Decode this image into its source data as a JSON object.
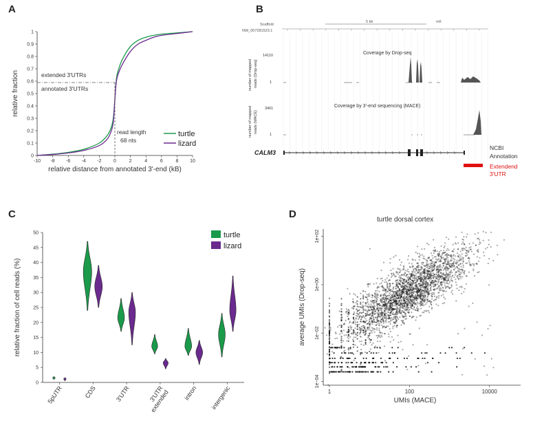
{
  "panels": {
    "A": "A",
    "B": "B",
    "C": "C",
    "D": "D"
  },
  "colors": {
    "turtle": "#1a9a4a",
    "lizard": "#6a2a8e",
    "extended": "#e01010",
    "track": "#555555"
  },
  "panelA": {
    "ext_label": "extended 3'UTRs",
    "ann_label": "annotated 3'UTRs",
    "read_len_1": "read length",
    "read_len_2": "68 nts",
    "legend": [
      "turtle",
      "lizard"
    ]
  },
  "panelB": {
    "scaffold_label": "Scaffold",
    "scaffold_id": "NW_007281523.1",
    "scale_text": "5 kb",
    "build": "m6",
    "track1_title": "Coverage by Drop-seq",
    "track1_max": "14110",
    "track1_min": "1",
    "track1_ylab1": "number of mapped",
    "track1_ylab2": "reads (Drop-seq)",
    "track2_title": "Coverage by 3'-end sequencing (MACE)",
    "track2_max": "3461",
    "track2_min": "1",
    "track2_ylab1": "number of mapped",
    "track2_ylab2": "reads (MACE)",
    "gene": "CALM3",
    "ncbi_1": "NCBI",
    "ncbi_2": "Annotation",
    "ext_1": "Extendend",
    "ext_2": "3'UTR"
  },
  "panelD": {
    "title": "turtle dorsal cortex"
  },
  "chart_data": [
    {
      "type": "line",
      "panel": "A",
      "title": "",
      "xlabel": "relative distance from annotated 3'-end (kB)",
      "ylabel": "relative fraction",
      "xlim": [
        -10,
        10
      ],
      "ylim": [
        0,
        1
      ],
      "xticks": [
        -10,
        -8,
        -6,
        -4,
        -2,
        0,
        2,
        4,
        6,
        8,
        10
      ],
      "yticks": [
        0,
        0.1,
        0.2,
        0.3,
        0.4,
        0.5,
        0.6,
        0.7,
        0.8,
        0.9,
        1
      ],
      "ytick_labels": [
        "0",
        "0.1",
        "0.2",
        "0.3",
        "0.4",
        "0.5",
        "0.6",
        "0.7",
        "0.8",
        "0.9",
        "1"
      ],
      "reference_y": 0.6,
      "series": [
        {
          "name": "turtle",
          "x": [
            -10,
            -8,
            -6,
            -4,
            -2,
            -1,
            -0.5,
            -0.2,
            0,
            0.2,
            0.5,
            1,
            2,
            3,
            4,
            5,
            6,
            8,
            10
          ],
          "y": [
            0,
            0.01,
            0.025,
            0.05,
            0.1,
            0.16,
            0.22,
            0.3,
            0.45,
            0.62,
            0.7,
            0.78,
            0.88,
            0.93,
            0.955,
            0.97,
            0.98,
            0.99,
            1
          ]
        },
        {
          "name": "lizard",
          "x": [
            -10,
            -8,
            -6,
            -4,
            -2,
            -1,
            -0.5,
            -0.2,
            0,
            0.2,
            0.5,
            1,
            2,
            3,
            4,
            5,
            6,
            8,
            10
          ],
          "y": [
            0,
            0.008,
            0.02,
            0.04,
            0.08,
            0.13,
            0.19,
            0.27,
            0.45,
            0.6,
            0.67,
            0.74,
            0.84,
            0.9,
            0.93,
            0.955,
            0.97,
            0.985,
            1
          ]
        }
      ]
    },
    {
      "type": "violin",
      "panel": "C",
      "title": "",
      "xlabel": "",
      "ylabel": "relative fraction of cell reads  (%)",
      "ylim": [
        0,
        50
      ],
      "yticks": [
        0,
        5,
        10,
        15,
        20,
        25,
        30,
        35,
        40,
        45,
        50
      ],
      "categories": [
        "5pUTR",
        "CDS",
        "3'UTR",
        "3'UTR extended",
        "intron",
        "intergenic"
      ],
      "series": [
        {
          "name": "turtle",
          "values": [
            1.5,
            37,
            21.5,
            12,
            12,
            16
          ],
          "min": [
            1,
            24,
            17,
            9.5,
            9,
            8.5
          ],
          "max": [
            2,
            47,
            28,
            16,
            18,
            23
          ],
          "halfwidth": [
            0.3,
            1.0,
            0.8,
            0.7,
            0.8,
            0.8
          ]
        },
        {
          "name": "lizard",
          "values": [
            1.2,
            32,
            23.5,
            6.5,
            10,
            24
          ],
          "min": [
            0.5,
            25,
            12.5,
            4.5,
            6,
            17
          ],
          "max": [
            1.6,
            39,
            30,
            8,
            14,
            35.5
          ],
          "halfwidth": [
            0.3,
            0.9,
            0.8,
            0.6,
            0.8,
            0.75
          ]
        }
      ],
      "legend": [
        "turtle",
        "lizard"
      ]
    },
    {
      "type": "scatter",
      "panel": "D",
      "title": "turtle dorsal cortex",
      "xlabel": "UMIs (MACE)",
      "ylabel": "average UMIs (Drop-seq)",
      "x_scale": "log",
      "y_scale": "log",
      "xlim": [
        0.7,
        60000
      ],
      "ylim": [
        7e-05,
        200
      ],
      "xticks": [
        1,
        100,
        10000
      ],
      "xtick_labels": [
        "1",
        "100",
        "10000"
      ],
      "yticks": [
        0.0001,
        0.01,
        1,
        100
      ],
      "ytick_labels": [
        "1e−04",
        "1e−02",
        "1e+00",
        "1e+02"
      ],
      "trend": "positive correlation, dense cloud centered near x=100, y=0.5"
    }
  ]
}
